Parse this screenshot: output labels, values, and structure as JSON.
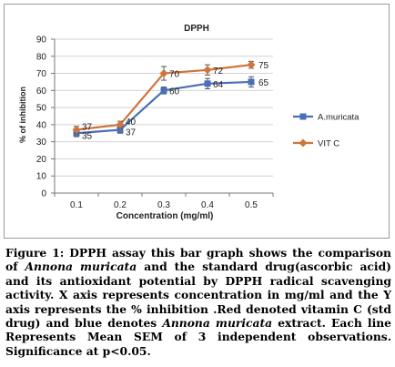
{
  "chart_data": {
    "type": "line",
    "title": "DPPH",
    "xlabel": "Concentration (mg/ml)",
    "ylabel": "% of inhibition",
    "categories": [
      "0.1",
      "0.2",
      "0.3",
      "0.4",
      "0.5"
    ],
    "ylim": [
      0,
      90
    ],
    "yticks": [
      0,
      10,
      20,
      30,
      40,
      50,
      60,
      70,
      80,
      90
    ],
    "grid": true,
    "legend_position": "right",
    "series": [
      {
        "name": "A.muricata",
        "color": "#4a6fb5",
        "marker": "square",
        "values": [
          35,
          37,
          60,
          64,
          65
        ],
        "labels": [
          "35",
          "37",
          "60",
          "64",
          "65"
        ],
        "errors": [
          2,
          2,
          2,
          3,
          3
        ]
      },
      {
        "name": "VIT C",
        "color": "#d0743c",
        "marker": "diamond",
        "values": [
          37,
          40,
          70,
          72,
          75
        ],
        "labels": [
          "37",
          "40",
          "70",
          "72",
          "75"
        ],
        "errors": [
          2,
          2,
          4,
          3,
          2
        ]
      }
    ]
  },
  "caption": {
    "lead": "Figure 1: DPPH assay this bar graph shows the comparison of",
    "species1": "Annona muricata",
    "part2": "and the standard drug(ascorbic acid) and its antioxidant potential by DPPH radical scavenging activity. X axis represents concentration in mg/ml and the Y axis represents the % inhibition .Red denoted vitamin C (std drug) and blue denotes",
    "species2": "Annona muricata",
    "part3": "extract. Each line Represents Mean SEM of 3 independent observations. Significance at p<0.05."
  }
}
